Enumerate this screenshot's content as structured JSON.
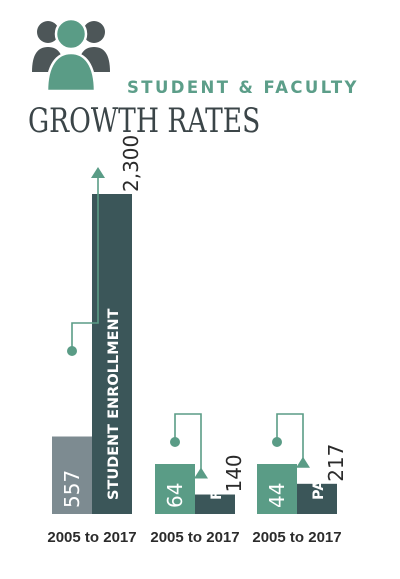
{
  "header": {
    "subtitle": "STUDENT & FACULTY",
    "title": "GROWTH RATES",
    "icon": "people-group-icon"
  },
  "colors": {
    "accent": "#5a9c86",
    "dark_bar": "#3b5659",
    "gray_bar": "#7d8b91",
    "icon_dark": "#4d5658",
    "text_dark": "#2b2b2b"
  },
  "chart_data": {
    "type": "bar",
    "title": "STUDENT & FACULTY GROWTH RATES",
    "groups": [
      {
        "name": "STUDENT ENROLLMENT",
        "period": "2005 to 2017",
        "from": 557,
        "to": 2300,
        "from_label": "557",
        "to_label": "2,300"
      },
      {
        "name": "FULL-TIME FACULTY",
        "period": "2005 to 2017",
        "from": 64,
        "to": 140,
        "from_label": "64",
        "to_label": "140"
      },
      {
        "name": "PART-TIME FACULTY",
        "period": "2005 to 2017",
        "from": 44,
        "to": 217,
        "from_label": "44",
        "to_label": "217"
      }
    ],
    "grid": false,
    "legend": "none"
  }
}
